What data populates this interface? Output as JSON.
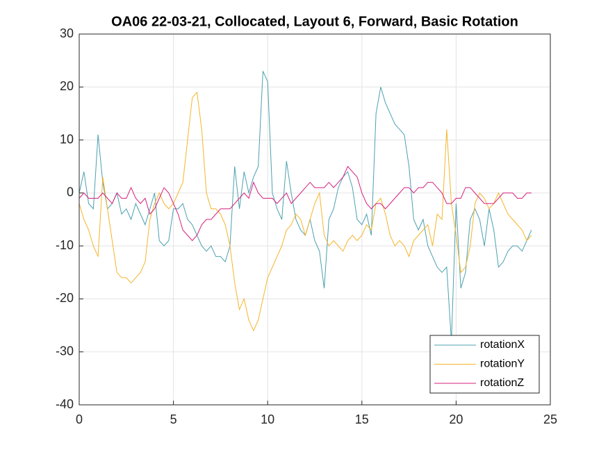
{
  "chart_data": {
    "type": "line",
    "title": "OA06 22-03-21, Collocated, Layout 6, Forward, Basic Rotation",
    "x": [
      0,
      0.25,
      0.5,
      0.75,
      1,
      1.25,
      1.5,
      1.75,
      2,
      2.25,
      2.5,
      2.75,
      3,
      3.25,
      3.5,
      3.75,
      4,
      4.25,
      4.5,
      4.75,
      5,
      5.25,
      5.5,
      5.75,
      6,
      6.25,
      6.5,
      6.75,
      7,
      7.25,
      7.5,
      7.75,
      8,
      8.25,
      8.5,
      8.75,
      9,
      9.25,
      9.5,
      9.75,
      10,
      10.25,
      10.5,
      10.75,
      11,
      11.25,
      11.5,
      11.75,
      12,
      12.25,
      12.5,
      12.75,
      13,
      13.25,
      13.5,
      13.75,
      14,
      14.25,
      14.5,
      14.75,
      15,
      15.25,
      15.5,
      15.75,
      16,
      16.25,
      16.5,
      16.75,
      17,
      17.25,
      17.5,
      17.75,
      18,
      18.25,
      18.5,
      18.75,
      19,
      19.25,
      19.5,
      19.75,
      20,
      20.25,
      20.5,
      20.75,
      21,
      21.25,
      21.5,
      21.75,
      22,
      22.25,
      22.5,
      22.75,
      23,
      23.25,
      23.5,
      23.75,
      24
    ],
    "series": [
      {
        "name": "rotationX",
        "color": "#4ba0b0",
        "values": [
          0,
          4,
          -2,
          -3,
          11,
          2,
          -3,
          -2,
          0,
          -4,
          -3,
          -5,
          -2,
          -4,
          -6,
          -3,
          0,
          -9,
          -10,
          -9,
          -3,
          -3,
          -2,
          -5,
          -6,
          -8,
          -10,
          -11,
          -10,
          -12,
          -12,
          -13,
          -10,
          5,
          -3,
          4,
          0,
          3,
          5,
          23,
          21,
          0,
          -3,
          -5,
          6,
          0,
          -5,
          -7,
          -8,
          -5,
          -9,
          -11,
          -18,
          -5,
          -3,
          1,
          3,
          4,
          1,
          -5,
          -6,
          -4,
          -8,
          15,
          20,
          17,
          15,
          13,
          12,
          11,
          5,
          -5,
          -7,
          -5,
          -10,
          -12,
          -14,
          -15,
          -14,
          -28,
          -2,
          -18,
          -15,
          -5,
          -3,
          -5,
          -10,
          -3,
          -7,
          -14,
          -13,
          -11,
          -10,
          -10,
          -11,
          -9,
          -7
        ]
      },
      {
        "name": "rotationY",
        "color": "#f5b42a",
        "values": [
          -2,
          -5,
          -7,
          -10,
          -12,
          3,
          -3,
          -9,
          -15,
          -16,
          -16,
          -17,
          -16,
          -15,
          -13,
          -5,
          -2,
          0,
          -2,
          -3,
          -2,
          0,
          2,
          10,
          18,
          19,
          12,
          0,
          -3,
          -3,
          -4,
          -6,
          -10,
          -17,
          -22,
          -20,
          -24,
          -26,
          -24,
          -20,
          -16,
          -14,
          -12,
          -10,
          -7,
          -6,
          -4,
          -5,
          -8,
          -5,
          -2,
          0,
          -8,
          -10,
          -9,
          -10,
          -11,
          -9,
          -8,
          -9,
          -8,
          -6,
          -7,
          -2,
          -1,
          -4,
          -8,
          -10,
          -9,
          -10,
          -12,
          -9,
          -8,
          -7,
          -6,
          -10,
          -4,
          -5,
          12,
          -2,
          -8,
          -15,
          -14,
          -10,
          -2,
          0,
          -1,
          -3,
          -2,
          0,
          -2,
          -4,
          -5,
          -6,
          -7,
          -9,
          -8
        ]
      },
      {
        "name": "rotationZ",
        "color": "#d4207c",
        "values": [
          -1,
          0,
          -1,
          -1,
          -1,
          0,
          -1,
          -2,
          0,
          -1,
          -1,
          1,
          -1,
          -2,
          -1,
          -4,
          -3,
          -1,
          1,
          0,
          -2,
          -4,
          -7,
          -8,
          -9,
          -8,
          -6,
          -5,
          -5,
          -4,
          -3,
          -3,
          -3,
          -2,
          -1,
          0,
          -1,
          2,
          0,
          -1,
          -1,
          -1,
          -2,
          -1,
          0,
          -2,
          -1,
          0,
          1,
          2,
          1,
          1,
          1,
          2,
          1,
          2,
          3,
          5,
          4,
          3,
          0,
          -2,
          -3,
          -2,
          -2,
          -3,
          -2,
          -1,
          0,
          1,
          1,
          0,
          1,
          1,
          2,
          2,
          1,
          0,
          -2,
          -2,
          -1,
          -1,
          1,
          1,
          0,
          -1,
          -2,
          -2,
          -2,
          -1,
          0,
          0,
          0,
          -1,
          -1,
          0,
          0
        ]
      }
    ],
    "xlim": [
      0,
      25
    ],
    "xticks": [
      0,
      5,
      10,
      15,
      20,
      25
    ],
    "ylim": [
      -40,
      30
    ],
    "yticks": [
      -40,
      -30,
      -20,
      -10,
      0,
      10,
      20,
      30
    ],
    "grid": true,
    "legend": "southeast"
  }
}
